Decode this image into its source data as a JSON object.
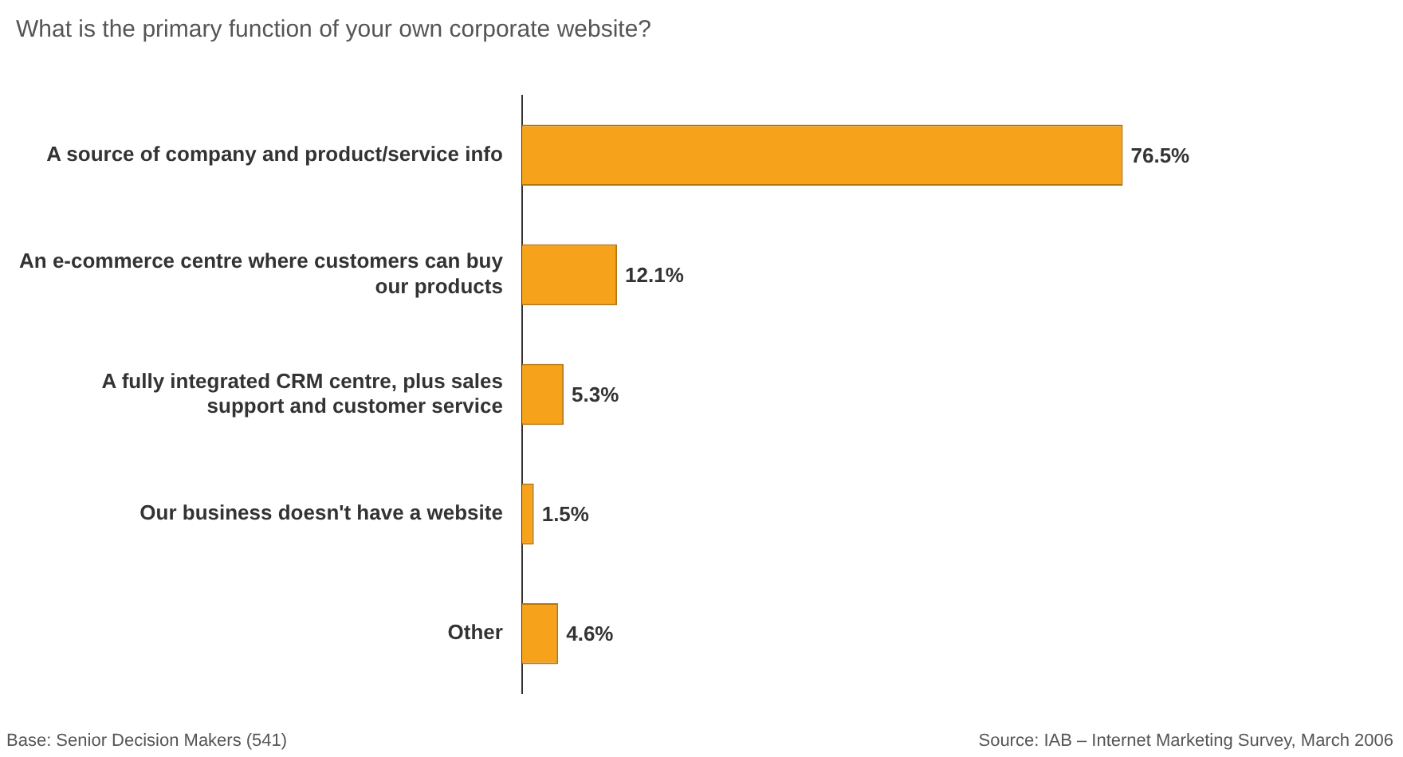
{
  "chart_data": {
    "type": "bar",
    "orientation": "horizontal",
    "title": "What is the primary function of your own corporate website?",
    "categories": [
      "A source of company and product/service info",
      "An e-commerce centre where customers can buy our products",
      "A fully integrated CRM centre, plus sales support and customer service",
      "Our business doesn't have a website",
      "Other"
    ],
    "values": [
      76.5,
      12.1,
      5.3,
      1.5,
      4.6
    ],
    "value_labels": [
      "76.5%",
      "12.1%",
      "5.3%",
      "1.5%",
      "4.6%"
    ],
    "color": "#f7a21b",
    "legend": false,
    "grid": false,
    "annotations": [
      "Base: Senior Decision Makers (541)",
      "Source: IAB – Internet Marketing Survey, March 2006"
    ]
  }
}
